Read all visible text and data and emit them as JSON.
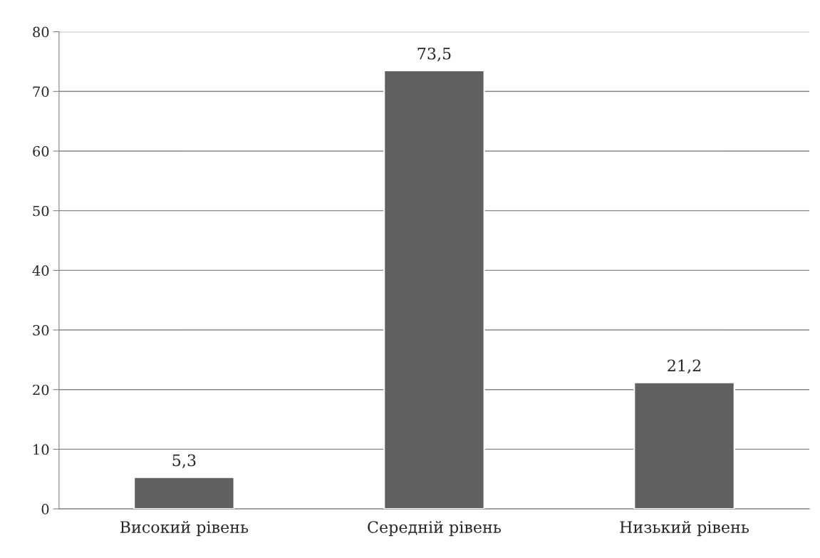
{
  "chart_data": {
    "type": "bar",
    "categories": [
      "Високий рівень",
      "Середній рівень",
      "Низький рівень"
    ],
    "values": [
      5.3,
      73.5,
      21.2
    ],
    "value_labels": [
      "5,3",
      "73,5",
      "21,2"
    ],
    "color": "#606060",
    "ylim": [
      0,
      80
    ],
    "yticks": [
      0,
      10,
      20,
      30,
      40,
      50,
      60,
      70,
      80
    ],
    "grid": "y"
  }
}
